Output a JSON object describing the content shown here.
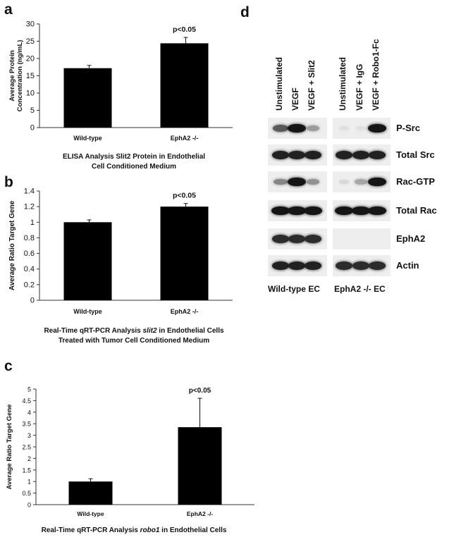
{
  "panel_letters": {
    "a": "a",
    "b": "b",
    "c": "c",
    "d": "d"
  },
  "chart_data": [
    {
      "type": "bar",
      "panel": "a",
      "categories": [
        "Wild-type",
        "EphA2 -/-"
      ],
      "values": [
        17.2,
        24.4
      ],
      "errors": [
        0.8,
        1.7
      ],
      "ylabel": "Average Protein Concentration (ng/mL)",
      "ylim": [
        0,
        30
      ],
      "yticks": [
        0,
        5,
        10,
        15,
        20,
        25,
        30
      ],
      "annotation": "p<0.05",
      "caption_lines": [
        "ELISA Analysis Slit2 Protein in Endothelial",
        "Cell Conditioned Medium"
      ],
      "grid": false
    },
    {
      "type": "bar",
      "panel": "b",
      "categories": [
        "Wild-type",
        "EphA2 -/-"
      ],
      "values": [
        1.0,
        1.2
      ],
      "errors": [
        0.03,
        0.04
      ],
      "ylabel": "Average Ratio Target Gene",
      "ylim": [
        0,
        1.4
      ],
      "yticks": [
        0,
        0.2,
        0.4,
        0.6,
        0.8,
        1,
        1.2,
        1.4
      ],
      "annotation": "p<0.05",
      "caption_line1": {
        "pre": "Real-Time qRT-PCR Analysis ",
        "ital": "slit2",
        "post": " in Endothelial Cells"
      },
      "caption_line2": "Treated with Tumor Cell Conditioned Medium",
      "grid": false
    },
    {
      "type": "bar",
      "panel": "c",
      "categories": [
        "Wild-type",
        "EphA2 -/-"
      ],
      "values": [
        1.0,
        3.35
      ],
      "errors": [
        0.12,
        1.25
      ],
      "ylabel": "Average Ratio Target Gene",
      "ylim": [
        0,
        5
      ],
      "yticks": [
        0,
        0.5,
        1,
        1.5,
        2,
        2.5,
        3,
        3.5,
        4,
        4.5,
        5
      ],
      "annotation": "p<0.05",
      "caption_line1": {
        "pre": "Real-Time qRT-PCR Analysis ",
        "ital": "robo1",
        "post": " in Endothelial Cells"
      },
      "grid": false
    }
  ],
  "blot": {
    "lanes": [
      "Unstimulated",
      "VEGF",
      "VEGF + Slit2",
      "Unstimulated",
      "VEGF + IgG",
      "VEGF + Robo1-Fc"
    ],
    "rows": [
      {
        "label": "P-Src",
        "intensity": [
          0.65,
          0.95,
          0.35,
          0.05,
          0.05,
          0.95
        ]
      },
      {
        "label": "Total Src",
        "intensity": [
          0.9,
          0.9,
          0.9,
          0.9,
          0.9,
          0.9
        ]
      },
      {
        "label": "Rac-GTP",
        "intensity": [
          0.45,
          0.95,
          0.4,
          0.08,
          0.3,
          0.95
        ]
      },
      {
        "label": "Total Rac",
        "intensity": [
          0.95,
          0.95,
          0.95,
          0.95,
          0.95,
          0.95
        ]
      },
      {
        "label": "EphA2",
        "intensity": [
          0.85,
          0.85,
          0.85,
          0.0,
          0.0,
          0.0
        ]
      },
      {
        "label": "Actin",
        "intensity": [
          0.9,
          0.9,
          0.9,
          0.85,
          0.85,
          0.85
        ]
      }
    ],
    "groups": [
      "Wild-type EC",
      "EphA2 -/- EC"
    ]
  }
}
